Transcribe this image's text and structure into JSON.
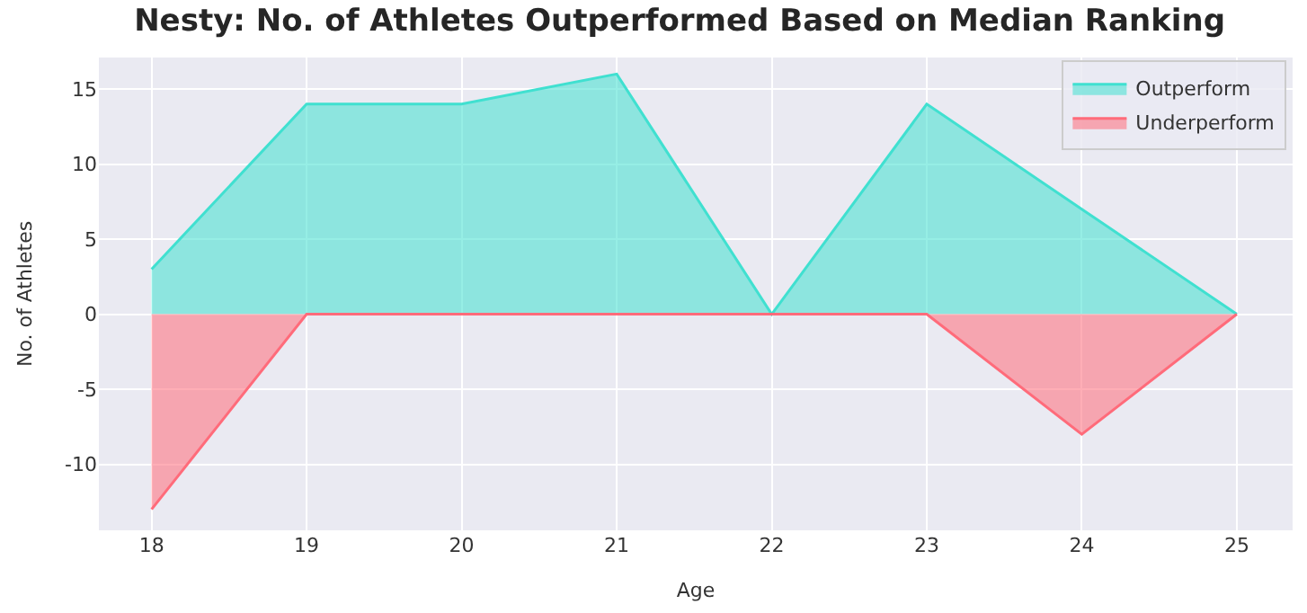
{
  "chart_data": {
    "type": "area",
    "title": "Nesty: No. of Athletes Outperformed Based on Median Ranking",
    "xlabel": "Age",
    "ylabel": "No. of Athletes",
    "x": [
      18,
      19,
      20,
      21,
      22,
      23,
      24,
      25
    ],
    "series": [
      {
        "name": "Outperform",
        "color": "#40e0d0",
        "values": [
          3,
          14,
          14,
          16,
          0,
          14,
          7,
          0
        ]
      },
      {
        "name": "Underperform",
        "color": "#ff6b7a",
        "values": [
          -13,
          0,
          0,
          0,
          0,
          0,
          -8,
          0
        ]
      }
    ],
    "xlim": [
      17.66,
      25.36
    ],
    "xticks": [
      18,
      19,
      20,
      21,
      22,
      23,
      24,
      25
    ],
    "ylim": [
      -14.4,
      17.1
    ],
    "yticks": [
      -10,
      -5,
      0,
      5,
      10,
      15
    ],
    "grid": true,
    "legend": "top right"
  }
}
